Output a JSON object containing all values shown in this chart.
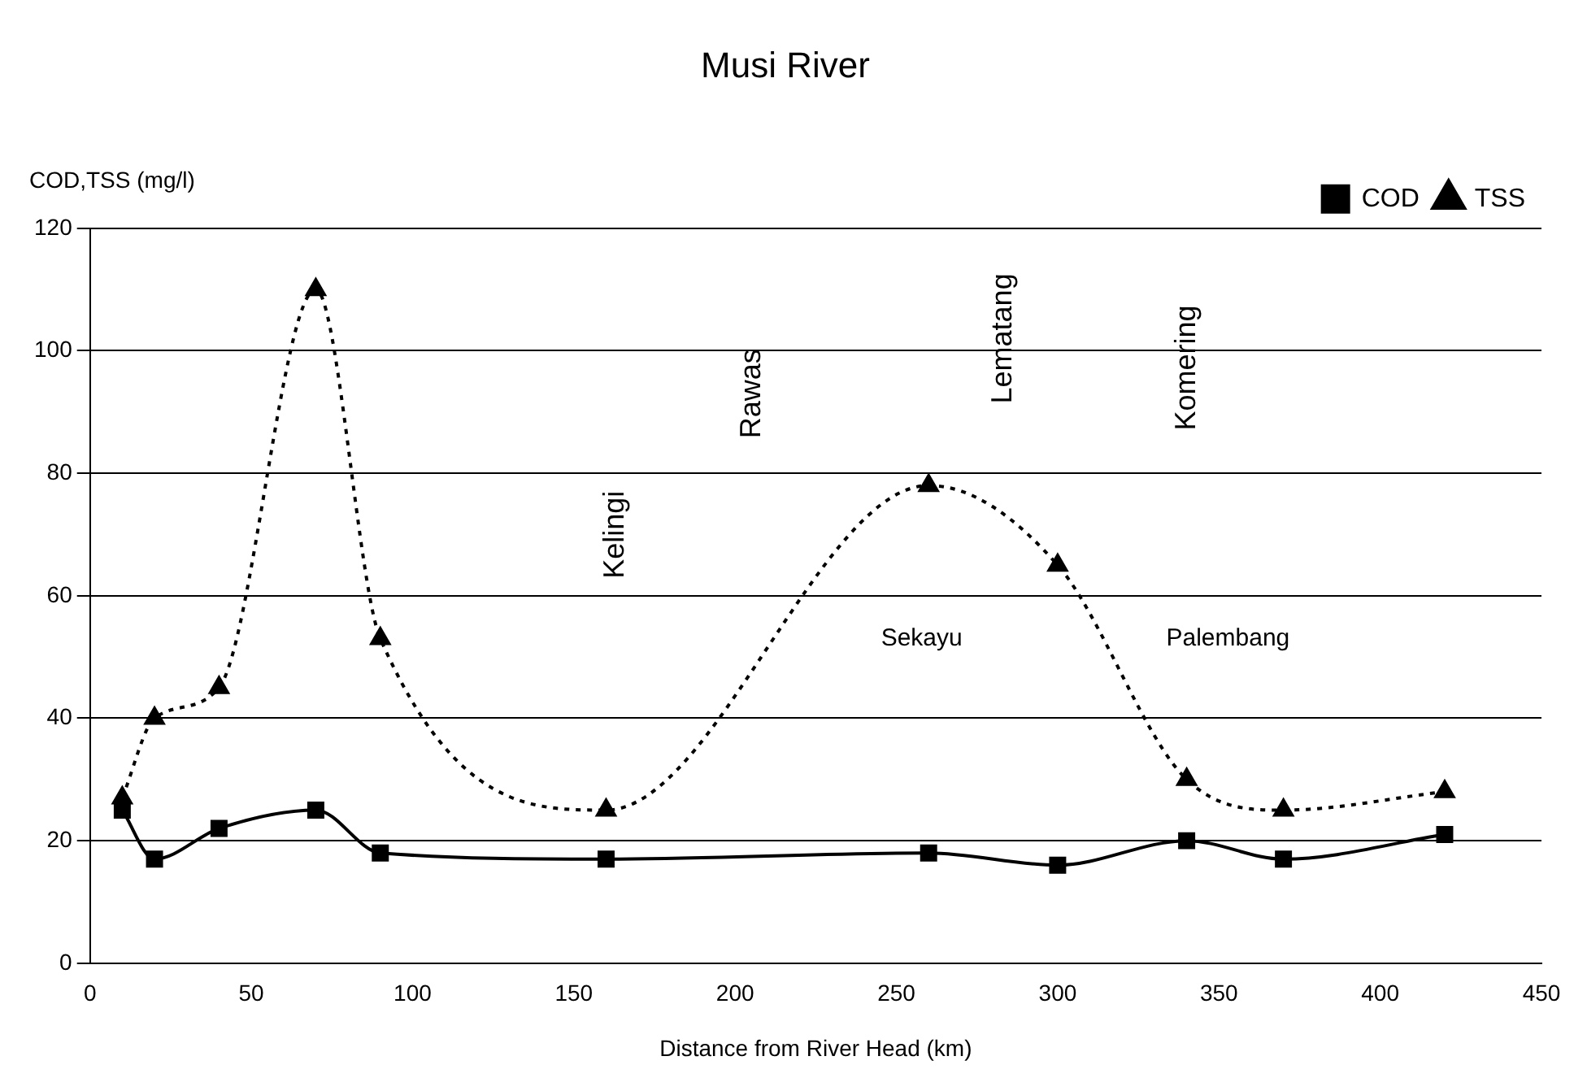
{
  "chart_data": {
    "type": "line",
    "title": "Musi River",
    "xlabel": "Distance from River Head (km)",
    "ylabel": "COD,TSS (mg/l)",
    "xlim": [
      0,
      450
    ],
    "xticks": [
      0,
      50,
      100,
      150,
      200,
      250,
      300,
      350,
      400,
      450
    ],
    "ylim": [
      0,
      120
    ],
    "yticks": [
      0,
      20,
      40,
      60,
      80,
      100,
      120
    ],
    "grid": "y",
    "legend": "top right",
    "series": [
      {
        "name": "COD",
        "color": "#000000",
        "marker": "square",
        "line_style": "solid",
        "x": [
          10,
          20,
          40,
          70,
          90,
          160,
          260,
          300,
          340,
          370,
          420
        ],
        "values": [
          25,
          17,
          22,
          25,
          18,
          17,
          18,
          16,
          20,
          17,
          21
        ]
      },
      {
        "name": "TSS",
        "color": "#000000",
        "marker": "triangle",
        "line_style": "dotted",
        "x": [
          10,
          20,
          40,
          70,
          90,
          160,
          260,
          300,
          340,
          370,
          420
        ],
        "values": [
          27,
          40,
          45,
          110,
          53,
          25,
          78,
          65,
          30,
          25,
          28
        ]
      }
    ],
    "annotations": [
      "Kelingi",
      "Rawas",
      "Lematang",
      "Komering",
      "Sekayu",
      "Palembang"
    ]
  }
}
